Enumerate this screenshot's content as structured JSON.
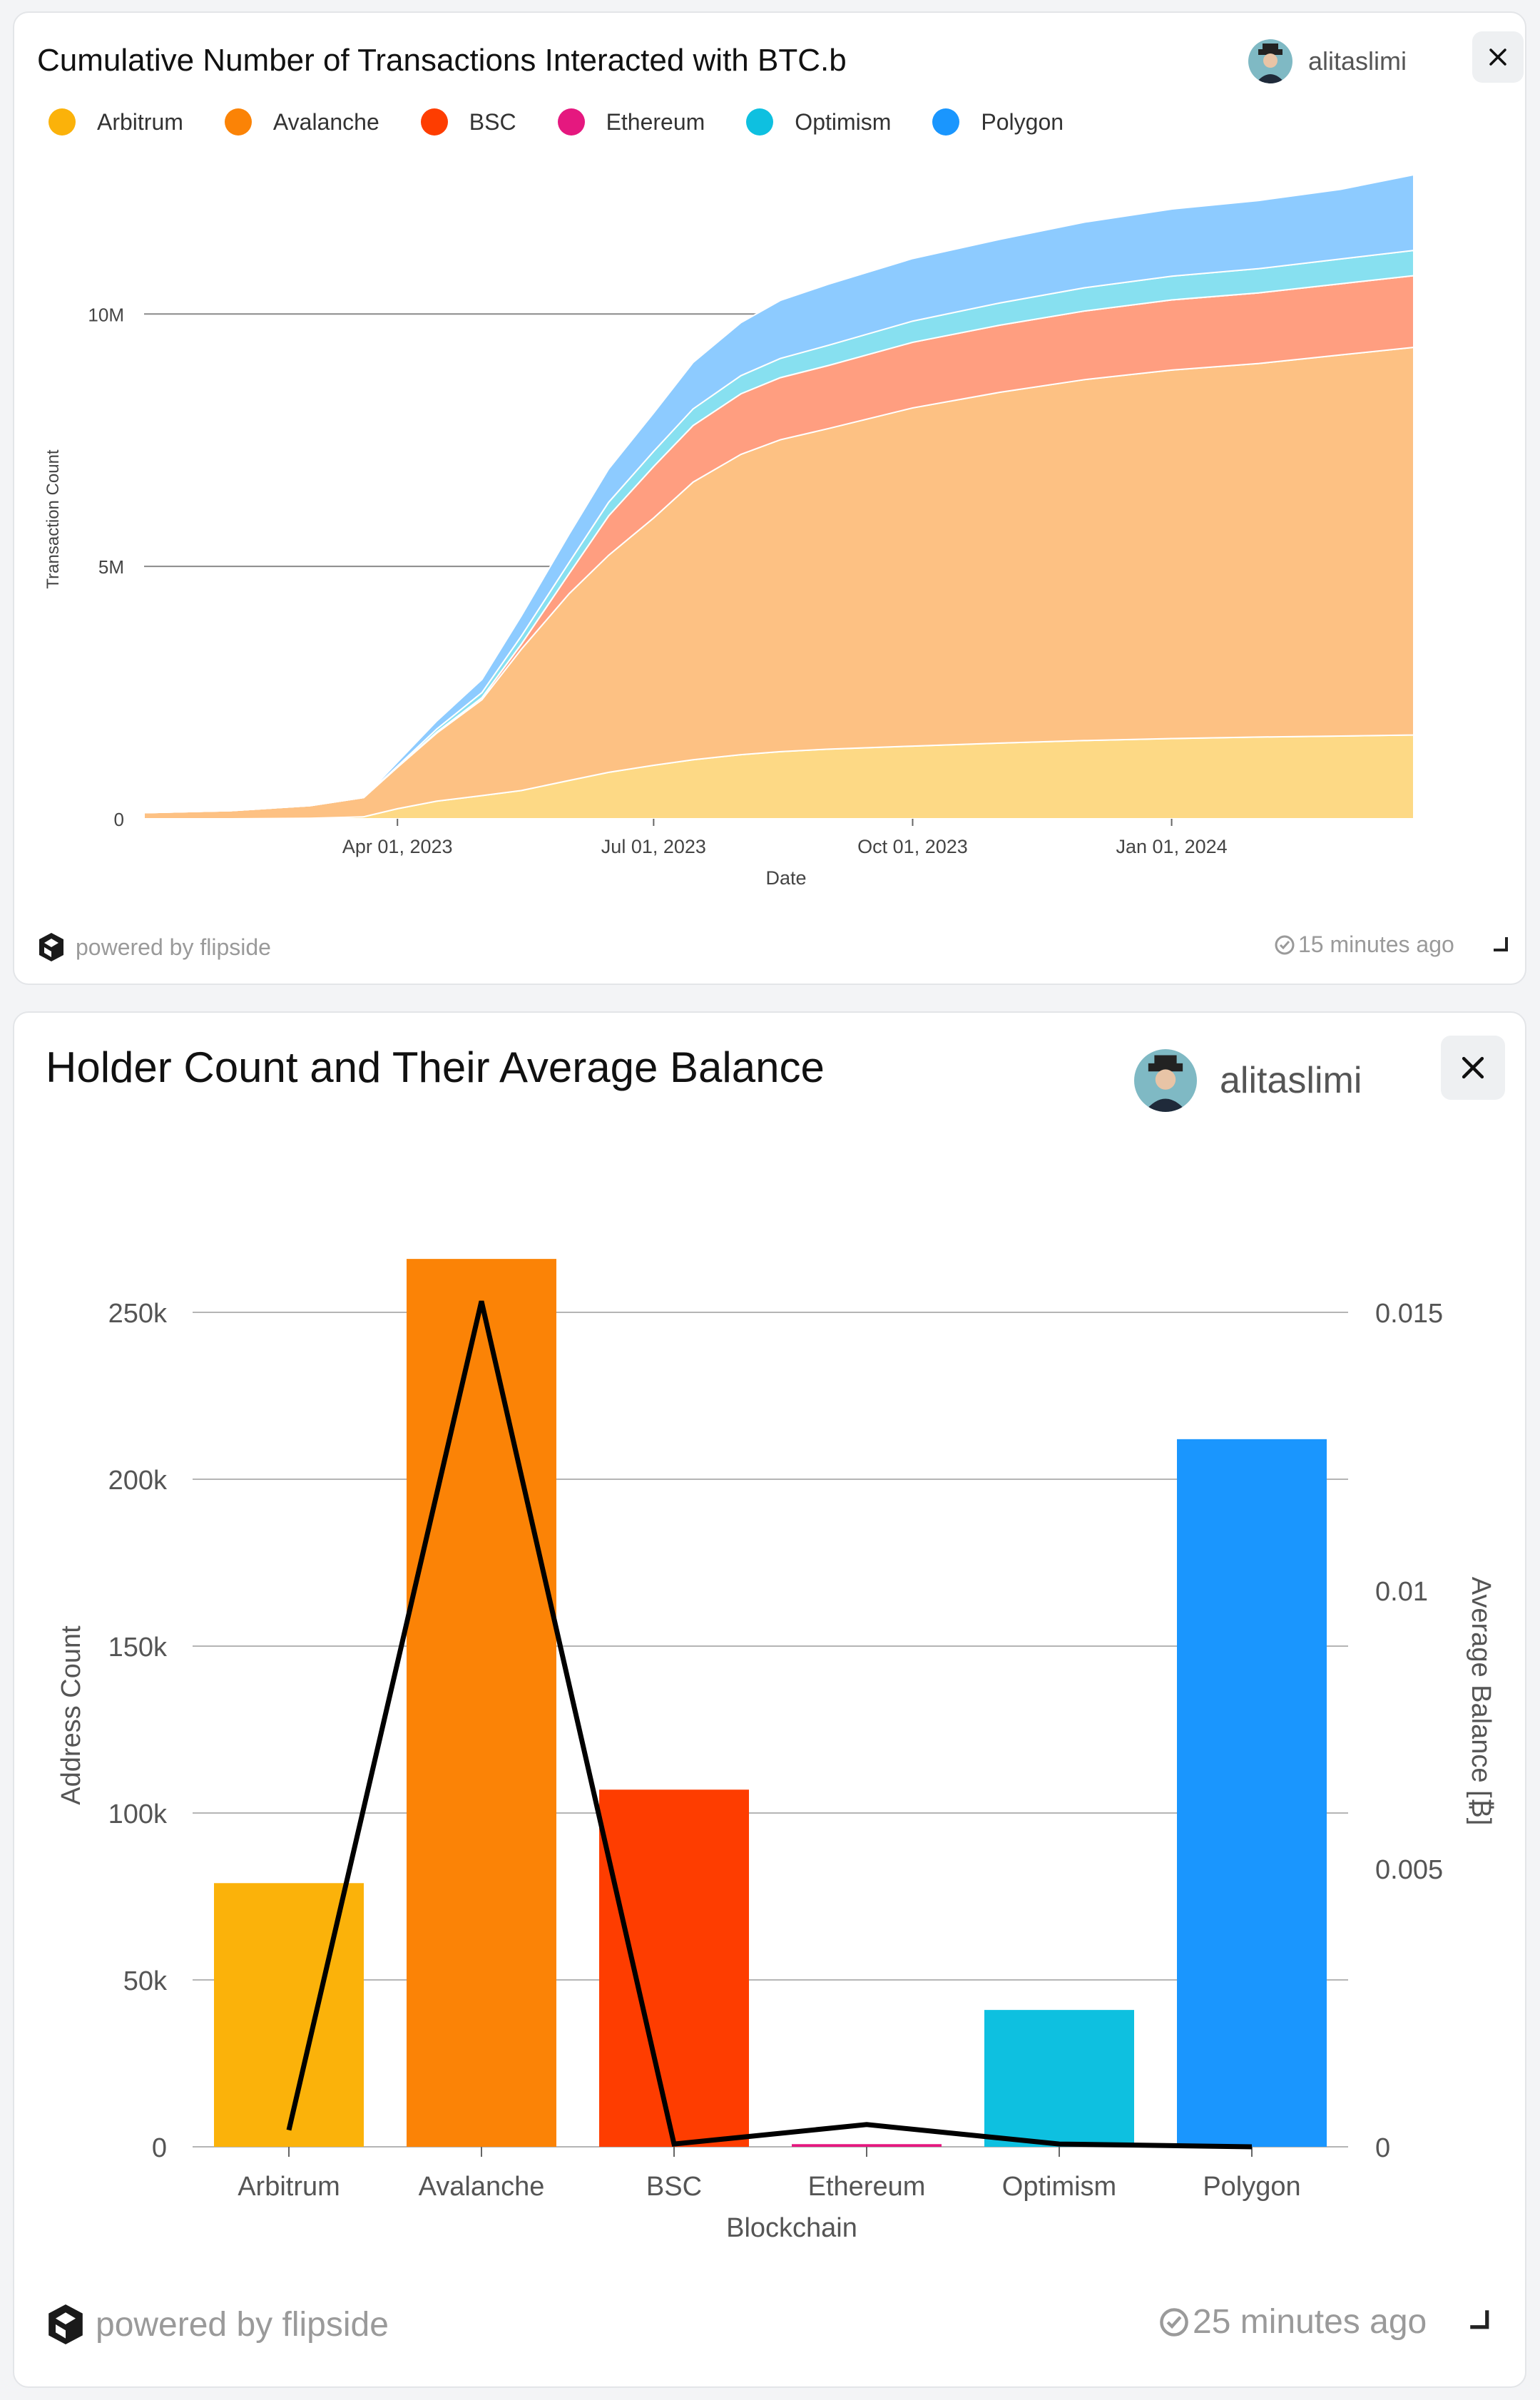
{
  "card1": {
    "title": "Cumulative Number of Transactions Interacted with BTC.b",
    "username": "alitaslimi",
    "brand": "powered by flipside",
    "updated": "15 minutes ago",
    "icons": [
      "avatar",
      "close-icon",
      "flipside-logo-icon",
      "check-clock-icon",
      "resize-handle-icon"
    ]
  },
  "card2": {
    "title": "Holder Count and Their Average Balance",
    "username": "alitaslimi",
    "brand": "powered by flipside",
    "updated": "25 minutes ago",
    "icons": [
      "avatar",
      "close-icon",
      "flipside-logo-icon",
      "check-clock-icon",
      "resize-handle-icon"
    ]
  },
  "colors": {
    "Arbitrum": "#fbb20a",
    "Avalanche": "#fb8306",
    "BSC": "#fe3d00",
    "Ethereum": "#e5187f",
    "Optimism": "#0ec0e0",
    "Polygon": "#1a96fe"
  },
  "chart_data": [
    {
      "type": "area",
      "stacked": true,
      "title": "Cumulative Number of Transactions Interacted with BTC.b",
      "xlabel": "Date",
      "ylabel": "Transaction Count",
      "y_ticks": [
        0,
        5000000,
        10000000
      ],
      "y_tick_labels": [
        "0",
        "5M",
        "10M"
      ],
      "x_tick_labels": [
        "Apr 01, 2023",
        "Jul 01, 2023",
        "Oct 01, 2023",
        "Jan 01, 2024"
      ],
      "x_tick_dates": [
        "2023-04-01",
        "2023-07-01",
        "2023-10-01",
        "2024-01-01"
      ],
      "ylim": [
        0,
        13000000
      ],
      "legend": "top-left",
      "grid": true,
      "x": [
        "2023-01-01",
        "2023-02-01",
        "2023-03-01",
        "2023-03-20",
        "2023-04-01",
        "2023-04-15",
        "2023-05-01",
        "2023-05-15",
        "2023-06-01",
        "2023-06-15",
        "2023-07-01",
        "2023-07-15",
        "2023-08-01",
        "2023-08-15",
        "2023-09-01",
        "2023-10-01",
        "2023-11-01",
        "2023-12-01",
        "2024-01-01",
        "2024-02-01",
        "2024-03-01",
        "2024-03-27"
      ],
      "series": [
        {
          "name": "Arbitrum",
          "values": [
            0,
            0,
            10000,
            40000,
            200000,
            350000,
            460000,
            560000,
            760000,
            920000,
            1060000,
            1170000,
            1270000,
            1330000,
            1380000,
            1440000,
            1500000,
            1550000,
            1590000,
            1620000,
            1640000,
            1660000
          ]
        },
        {
          "name": "Avalanche",
          "values": [
            120000,
            160000,
            250000,
            380000,
            820000,
            1350000,
            1900000,
            2800000,
            3700000,
            4300000,
            4900000,
            5500000,
            5950000,
            6180000,
            6350000,
            6700000,
            6950000,
            7150000,
            7300000,
            7400000,
            7550000,
            7680000
          ]
        },
        {
          "name": "BSC",
          "values": [
            0,
            0,
            0,
            0,
            5000,
            20000,
            40000,
            100000,
            400000,
            780000,
            1020000,
            1120000,
            1200000,
            1230000,
            1250000,
            1300000,
            1330000,
            1360000,
            1390000,
            1400000,
            1410000,
            1420000
          ]
        },
        {
          "name": "Ethereum",
          "values": [
            0,
            0,
            0,
            0,
            0,
            0,
            0,
            0,
            0,
            0,
            0,
            0,
            0,
            0,
            0,
            0,
            0,
            0,
            0,
            0,
            0,
            0
          ]
        },
        {
          "name": "Optimism",
          "values": [
            0,
            0,
            0,
            0,
            20000,
            60000,
            100000,
            160000,
            220000,
            270000,
            300000,
            330000,
            360000,
            380000,
            400000,
            420000,
            440000,
            460000,
            470000,
            480000,
            490000,
            500000
          ]
        },
        {
          "name": "Polygon",
          "values": [
            0,
            0,
            0,
            0,
            80000,
            160000,
            260000,
            400000,
            560000,
            660000,
            760000,
            920000,
            1050000,
            1150000,
            1210000,
            1240000,
            1260000,
            1300000,
            1330000,
            1350000,
            1380000,
            1500000
          ]
        }
      ]
    },
    {
      "type": "bar",
      "title": "Holder Count and Their Average Balance",
      "xlabel": "Blockchain",
      "ylabel": "Address Count",
      "y2label": "Average Balance [₿]",
      "categories": [
        "Arbitrum",
        "Avalanche",
        "BSC",
        "Ethereum",
        "Optimism",
        "Polygon"
      ],
      "ylim": [
        0,
        250000
      ],
      "y2lim": [
        0,
        0.015
      ],
      "y_ticks": [
        0,
        50000,
        100000,
        150000,
        200000,
        250000
      ],
      "y_tick_labels": [
        "0",
        "50k",
        "100k",
        "150k",
        "200k",
        "250k"
      ],
      "y2_ticks": [
        0,
        0.005,
        0.01,
        0.015
      ],
      "y2_tick_labels": [
        "0",
        "0.005",
        "0.01",
        "0.015"
      ],
      "grid": true,
      "series": [
        {
          "name": "Address Count",
          "kind": "bar",
          "values": [
            79000,
            266000,
            107000,
            800,
            41000,
            212000
          ]
        },
        {
          "name": "Average Balance",
          "kind": "line",
          "axis": "right",
          "values": [
            0.0003,
            0.0152,
            5e-05,
            0.0004,
            5e-05,
            0.0
          ]
        }
      ]
    }
  ]
}
